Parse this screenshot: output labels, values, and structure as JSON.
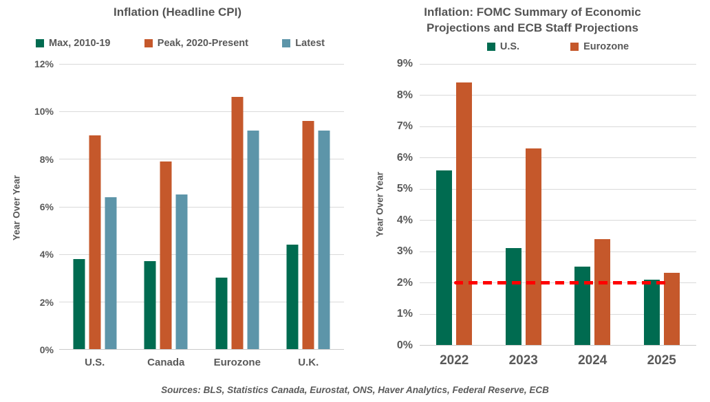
{
  "colors": {
    "green": "#006B50",
    "orange": "#C5582B",
    "blue": "#5D95A9",
    "grid": "#D9D9D9",
    "text": "#595959",
    "reference_red": "#FF0000"
  },
  "footer": {
    "text": "Sources: BLS, Statistics Canada, Eurostat, ONS, Haver Analytics, Federal Reserve, ECB"
  },
  "chart_data": [
    {
      "type": "bar",
      "title": "Inflation (Headline CPI)",
      "title_lines": [
        "Inflation (Headline CPI)"
      ],
      "ylabel": "Year Over Year",
      "categories": [
        "U.S.",
        "Canada",
        "Eurozone",
        "U.K."
      ],
      "series": [
        {
          "name": "Max, 2010-19",
          "color_key": "green",
          "values": [
            3.8,
            3.7,
            3.0,
            4.4
          ]
        },
        {
          "name": "Peak, 2020-Present",
          "color_key": "orange",
          "values": [
            9.0,
            7.9,
            10.6,
            9.6
          ]
        },
        {
          "name": "Latest",
          "color_key": "blue",
          "values": [
            6.4,
            6.5,
            9.2,
            9.2
          ]
        }
      ],
      "ylim": [
        0,
        12
      ],
      "ytick_step": 2,
      "ytick_suffix": "%",
      "grid": true,
      "legend_position": "top"
    },
    {
      "type": "bar",
      "title": "Inflation: FOMC Summary of Economic Projections and ECB Staff Projections",
      "title_lines": [
        "Inflation: FOMC Summary of Economic",
        "Projections and ECB Staff Projections"
      ],
      "ylabel": "Year Over Year",
      "categories": [
        "2022",
        "2023",
        "2024",
        "2025"
      ],
      "series": [
        {
          "name": "U.S.",
          "color_key": "green",
          "values": [
            5.6,
            3.1,
            2.5,
            2.1
          ]
        },
        {
          "name": "Eurozone",
          "color_key": "orange",
          "values": [
            8.4,
            6.3,
            3.4,
            2.3
          ]
        }
      ],
      "ylim": [
        0,
        9
      ],
      "ytick_step": 1,
      "ytick_suffix": "%",
      "grid": true,
      "legend_position": "top",
      "reference_line": {
        "value": 2,
        "color": "#FF0000",
        "style": "dashed",
        "span": [
          0.125,
          0.89
        ]
      }
    }
  ]
}
